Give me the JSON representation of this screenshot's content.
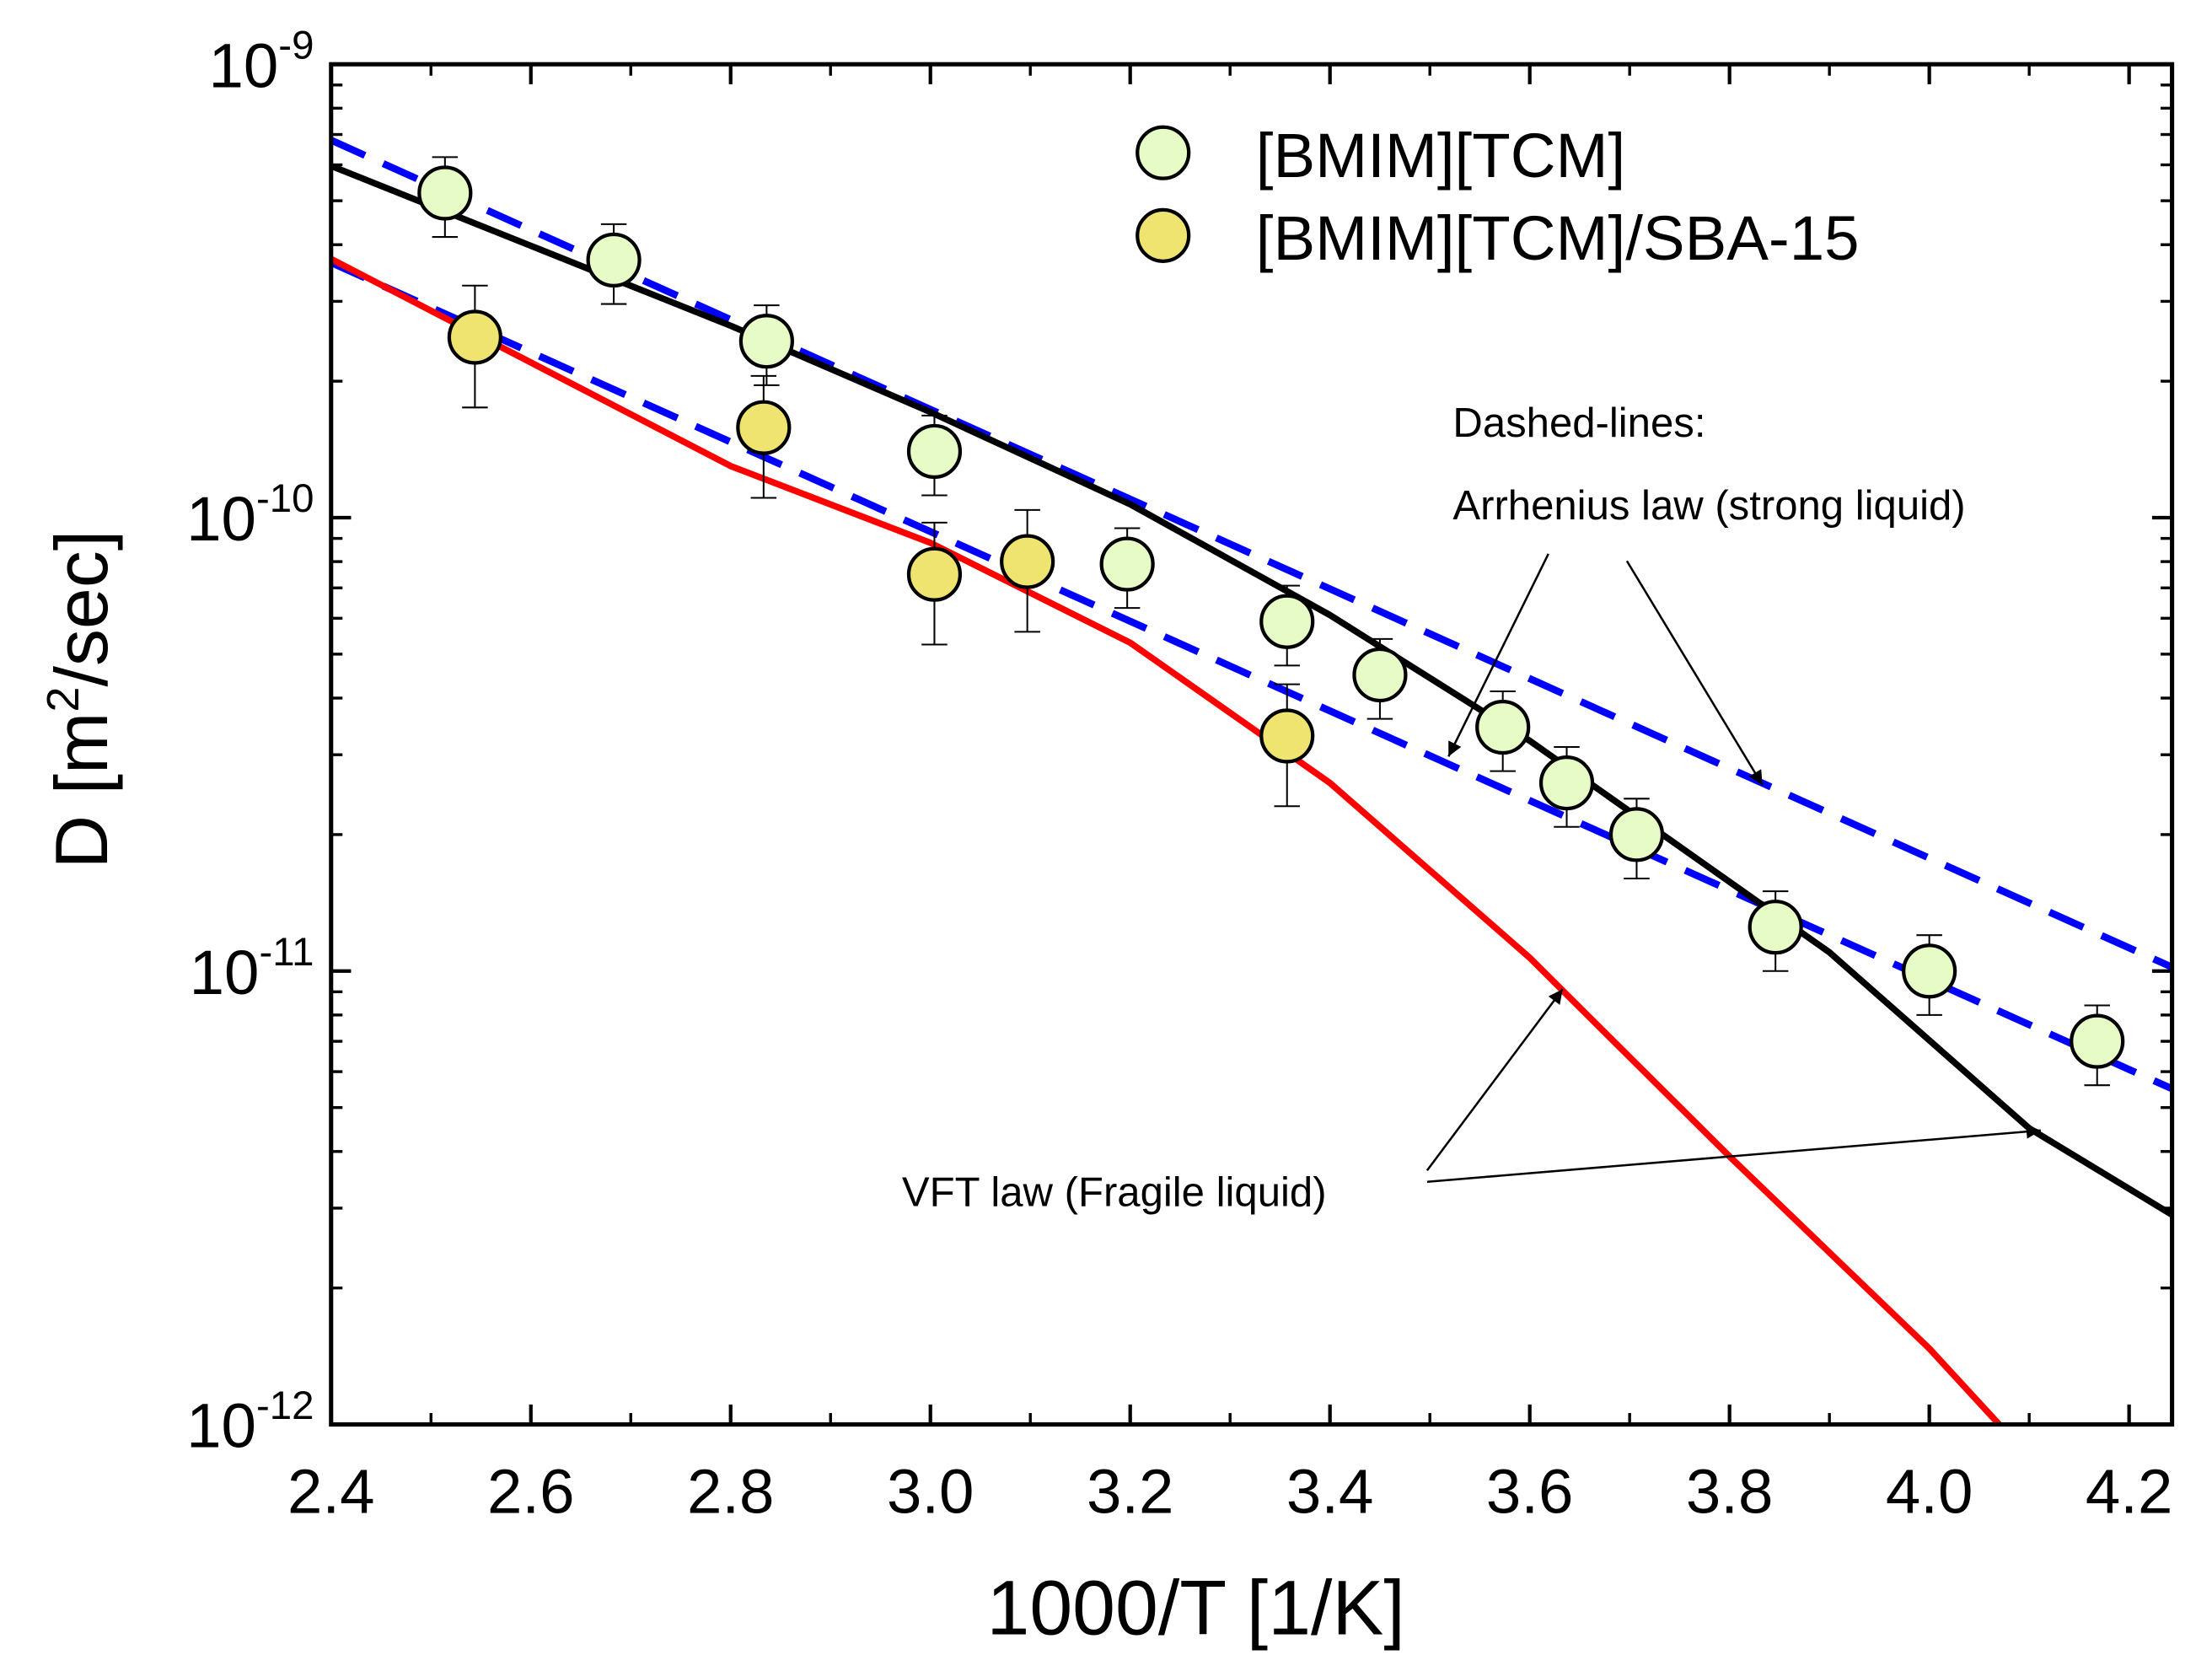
{
  "chart_data": {
    "type": "scatter",
    "xlabel": "1000/T [1/K]",
    "ylabel_main": "D [m",
    "ylabel_sup": "2",
    "ylabel_tail": "/sec]",
    "xlim": [
      2.4,
      4.243
    ],
    "ylim": [
      1e-12,
      1e-09
    ],
    "yscale": "log",
    "x_ticks": [
      "2.4",
      "2.6",
      "2.8",
      "3.0",
      "3.2",
      "3.4",
      "3.6",
      "3.8",
      "4.0",
      "4.2"
    ],
    "y_ticks": [
      {
        "base": "10",
        "exp": "-9",
        "value": 1e-09
      },
      {
        "base": "10",
        "exp": "-10",
        "value": 1e-10
      },
      {
        "base": "10",
        "exp": "-11",
        "value": 1e-11
      },
      {
        "base": "10",
        "exp": "-12",
        "value": 1e-12
      }
    ],
    "legend_position": "top-right",
    "series": [
      {
        "name": "[BMIM][TCM]",
        "color": "#e6fbc6",
        "rel_err": 0.2,
        "x": [
          2.514,
          2.683,
          2.836,
          3.004,
          3.197,
          3.357,
          3.45,
          3.573,
          3.637,
          3.707,
          3.846,
          4.0,
          4.168
        ],
        "y": [
          5.2e-10,
          3.7e-10,
          2.45e-10,
          1.4e-10,
          7.9e-11,
          5.9e-11,
          4.5e-11,
          3.45e-11,
          2.6e-11,
          2e-11,
          1.25e-11,
          1e-11,
          7e-12
        ]
      },
      {
        "name": "[BMIM][TCM]/SBA-15",
        "color": "#f0e470",
        "rel_err": 0.3,
        "x": [
          2.544,
          2.833,
          3.004,
          3.097,
          3.357
        ],
        "y": [
          2.5e-10,
          1.58e-10,
          7.5e-11,
          8e-11,
          3.3e-11
        ]
      }
    ],
    "fits": [
      {
        "name": "Arrhenius fit [BMIM][TCM]",
        "style": "dashed",
        "color": "#0000ff",
        "x": [
          2.4,
          4.243
        ],
        "y": [
          6.8e-10,
          1.02e-11
        ]
      },
      {
        "name": "Arrhenius fit [BMIM][TCM]/SBA-15",
        "style": "dashed",
        "color": "#0000ff",
        "x": [
          2.4,
          4.243
        ],
        "y": [
          3.65e-10,
          5.5e-12
        ]
      },
      {
        "name": "VFT fit [BMIM][TCM]",
        "style": "solid",
        "color": "#000000",
        "x": [
          2.4,
          2.8,
          3.0,
          3.2,
          3.4,
          3.6,
          3.9,
          4.1,
          4.243
        ],
        "y": [
          5.97e-10,
          2.65e-10,
          1.71e-10,
          1.07e-10,
          6.1e-11,
          3.22e-11,
          1.1e-11,
          4.5e-12,
          2.9e-12
        ]
      },
      {
        "name": "VFT fit [BMIM][TCM]/SBA-15",
        "style": "solid",
        "color": "#ff0000",
        "x": [
          2.4,
          2.8,
          3.0,
          3.2,
          3.4,
          3.6,
          3.8,
          4.0,
          4.07
        ],
        "y": [
          3.72e-10,
          1.3e-10,
          8.8e-11,
          5.3e-11,
          2.6e-11,
          1.07e-11,
          3.9e-12,
          1.47e-12,
          1e-12
        ]
      }
    ],
    "annotations": {
      "dashed_title": "Dashed-lines:",
      "arrhenius": "Arrhenius law (strong liquid)",
      "vft": "VFT law (Fragile liquid)"
    }
  }
}
